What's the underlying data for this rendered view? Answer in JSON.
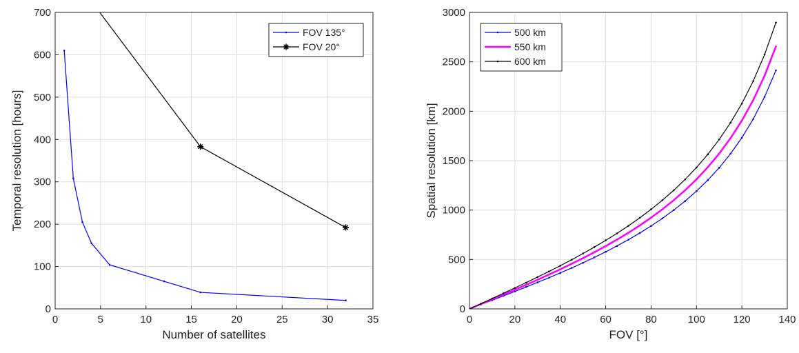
{
  "chart_data": [
    {
      "type": "line",
      "xlabel": "Number of satellites",
      "ylabel": "Temporal resolution [hours]",
      "xlim": [
        0,
        35
      ],
      "xticks": [
        0,
        5,
        10,
        15,
        20,
        25,
        30,
        35
      ],
      "ylim": [
        0,
        700
      ],
      "yticks": [
        0,
        100,
        200,
        300,
        400,
        500,
        600,
        700
      ],
      "grid": true,
      "legend": "upper right",
      "series": [
        {
          "name": "FOV 135°",
          "color": "#0000ff",
          "marker": "dot",
          "x": [
            1,
            2,
            3,
            4,
            6,
            12,
            16,
            32
          ],
          "values": [
            610,
            308,
            205,
            155,
            104,
            65,
            39,
            20
          ]
        },
        {
          "name": "FOV 20°",
          "color": "#000000",
          "marker": "asterisk",
          "x": [
            4,
            16,
            32
          ],
          "values": [
            726,
            383,
            192
          ]
        }
      ]
    },
    {
      "type": "line",
      "xlabel": "FOV [°]",
      "ylabel": "Spatial resolution [km]",
      "xlim": [
        0,
        140
      ],
      "xticks": [
        0,
        20,
        40,
        60,
        80,
        100,
        120,
        140
      ],
      "ylim": [
        0,
        3000
      ],
      "yticks": [
        0,
        500,
        1000,
        1500,
        2000,
        2500,
        3000
      ],
      "grid": true,
      "legend": "upper left",
      "x": [
        0,
        5,
        10,
        15,
        20,
        25,
        30,
        35,
        40,
        45,
        50,
        55,
        60,
        65,
        70,
        75,
        80,
        85,
        90,
        95,
        100,
        105,
        110,
        115,
        120,
        125,
        130,
        135
      ],
      "series": [
        {
          "name": "500 km",
          "color": "#0000ff",
          "marker": "dot",
          "values": [
            0,
            44,
            87,
            132,
            176,
            222,
            268,
            315,
            364,
            414,
            466,
            521,
            577,
            637,
            700,
            767,
            839,
            916,
            1000,
            1091,
            1192,
            1303,
            1428,
            1570,
            1732,
            1921,
            2145,
            2414
          ]
        },
        {
          "name": "550 km",
          "color": "#ff00ff",
          "marker": "dot",
          "width": 2.5,
          "values": [
            0,
            48,
            96,
            145,
            194,
            244,
            295,
            347,
            400,
            456,
            513,
            573,
            635,
            701,
            770,
            844,
            923,
            1008,
            1100,
            1200,
            1311,
            1434,
            1571,
            1727,
            1905,
            2113,
            2359,
            2656
          ]
        },
        {
          "name": "600 km",
          "color": "#000000",
          "marker": "dot",
          "values": [
            0,
            52,
            105,
            158,
            212,
            266,
            322,
            378,
            437,
            497,
            560,
            625,
            693,
            764,
            840,
            921,
            1007,
            1100,
            1200,
            1310,
            1430,
            1564,
            1714,
            1884,
            2078,
            2305,
            2573,
            2897
          ]
        }
      ]
    }
  ]
}
